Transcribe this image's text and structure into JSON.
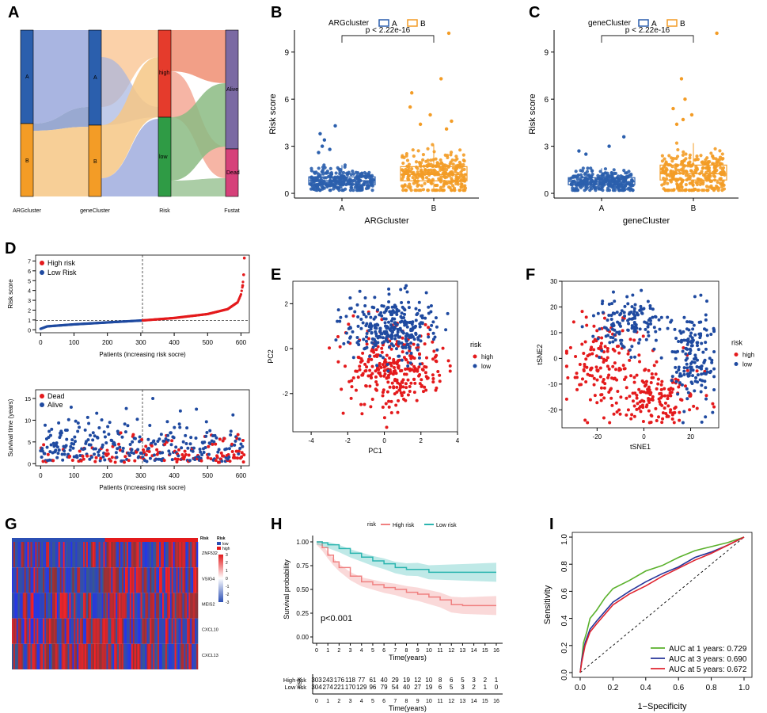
{
  "panel_letters": [
    "A",
    "B",
    "C",
    "D",
    "E",
    "F",
    "G",
    "H",
    "I"
  ],
  "colors": {
    "cluster_A": "#2b5fad",
    "cluster_B": "#f39c26",
    "risk_high": "#e53b2c",
    "risk_low": "#2f9b45",
    "alive": "#7b6aa3",
    "dead": "#d6417a",
    "red_points": "#e41a1c",
    "blue_points": "#1f4aa0",
    "km_high": "#f08080",
    "km_low": "#2bb5b0",
    "roc_1y": "#5ab12c",
    "roc_3y": "#26359a",
    "roc_5y": "#e0242f"
  },
  "chart_data": [
    {
      "id": "A",
      "type": "sankey",
      "axes": [
        "ARGcluster",
        "geneCluster",
        "Risk",
        "Fustat"
      ],
      "nodes": [
        {
          "axis": "ARGcluster",
          "label": "A",
          "share": 0.55
        },
        {
          "axis": "ARGcluster",
          "label": "B",
          "share": 0.45
        },
        {
          "axis": "geneCluster",
          "label": "A",
          "share": 0.45
        },
        {
          "axis": "geneCluster",
          "label": "B",
          "share": 0.55
        },
        {
          "axis": "Risk",
          "label": "high",
          "share": 0.5
        },
        {
          "axis": "Risk",
          "label": "low",
          "share": 0.5
        },
        {
          "axis": "Fustat",
          "label": "Alive",
          "share": 0.7
        },
        {
          "axis": "Fustat",
          "label": "Dead",
          "share": 0.3
        }
      ]
    },
    {
      "id": "B",
      "type": "boxplot",
      "legend_title": "ARGcluster",
      "legend_items": [
        "A",
        "B"
      ],
      "categories": [
        "A",
        "B"
      ],
      "xlabel": "ARGcluster",
      "ylabel": "Risk score",
      "ylim": [
        -0.3,
        10.4
      ],
      "yticks": [
        0,
        3,
        6,
        9
      ],
      "p_label": "p < 2.22e-16",
      "box_stats": [
        {
          "category": "A",
          "q1": 0.55,
          "median": 0.8,
          "q3": 1.05,
          "whisker_low": 0.2,
          "whisker_high": 1.8
        },
        {
          "category": "B",
          "q1": 0.8,
          "median": 1.2,
          "q3": 1.7,
          "whisker_low": 0.2,
          "whisker_high": 3.1
        }
      ],
      "outliers": [
        {
          "category": "A",
          "values": [
            4.3,
            3.8,
            3.4,
            3.0,
            2.8,
            2.6
          ]
        },
        {
          "category": "B",
          "values": [
            10.2,
            7.3,
            6.4,
            5.5,
            5.0,
            4.6,
            4.4,
            4.1
          ]
        }
      ]
    },
    {
      "id": "C",
      "type": "boxplot",
      "legend_title": "geneCluster",
      "legend_items": [
        "A",
        "B"
      ],
      "categories": [
        "A",
        "B"
      ],
      "xlabel": "geneCluster",
      "ylabel": "Risk score",
      "ylim": [
        -0.3,
        10.4
      ],
      "yticks": [
        0,
        3,
        6,
        9
      ],
      "p_label": "p < 2.22e-16",
      "box_stats": [
        {
          "category": "A",
          "q1": 0.55,
          "median": 0.75,
          "q3": 1.0,
          "whisker_low": 0.2,
          "whisker_high": 1.6
        },
        {
          "category": "B",
          "q1": 0.85,
          "median": 1.25,
          "q3": 1.8,
          "whisker_low": 0.2,
          "whisker_high": 3.2
        }
      ],
      "outliers": [
        {
          "category": "A",
          "values": [
            3.6,
            3.0,
            2.7,
            2.5
          ]
        },
        {
          "category": "B",
          "values": [
            10.2,
            7.3,
            6.0,
            5.4,
            5.0,
            4.7,
            4.4
          ]
        }
      ]
    },
    {
      "id": "D_top",
      "type": "scatter",
      "legend_items": [
        "High risk",
        "Low Risk"
      ],
      "xlabel": "Patients (increasing risk socre)",
      "ylabel": "Risk score",
      "xlim": [
        -15,
        625
      ],
      "ylim": [
        -0.3,
        7.6
      ],
      "xticks": [
        0,
        100,
        200,
        300,
        400,
        500,
        600
      ],
      "yticks": [
        0,
        1,
        2,
        3,
        4,
        5,
        6,
        7
      ],
      "cutoff_index": 305,
      "cutoff_score": 0.95,
      "n_patients": 610,
      "curve": [
        [
          0,
          0.1
        ],
        [
          20,
          0.35
        ],
        [
          100,
          0.55
        ],
        [
          200,
          0.75
        ],
        [
          305,
          0.95
        ],
        [
          400,
          1.2
        ],
        [
          500,
          1.6
        ],
        [
          560,
          2.1
        ],
        [
          590,
          2.8
        ],
        [
          600,
          3.6
        ],
        [
          605,
          4.5
        ],
        [
          608,
          5.6
        ],
        [
          610,
          7.3
        ]
      ]
    },
    {
      "id": "D_bottom",
      "type": "scatter",
      "legend_items": [
        "Dead",
        "Alive"
      ],
      "xlabel": "Patients (increasing risk socre)",
      "ylabel": "Survival time (years)",
      "xlim": [
        -15,
        625
      ],
      "ylim": [
        -0.5,
        17
      ],
      "xticks": [
        0,
        100,
        200,
        300,
        400,
        500,
        600
      ],
      "yticks": [
        0,
        5,
        10,
        15
      ],
      "cutoff_index": 305
    },
    {
      "id": "E",
      "type": "scatter",
      "xlabel": "PC1",
      "ylabel": "PC2",
      "xlim": [
        -5,
        4
      ],
      "ylim": [
        -3.7,
        3.0
      ],
      "xticks": [
        -4,
        -2,
        0,
        2,
        4
      ],
      "yticks": [
        -2,
        0,
        2
      ],
      "legend_title": "risk",
      "legend_items": [
        "high",
        "low"
      ]
    },
    {
      "id": "F",
      "type": "scatter",
      "xlabel": "tSNE1",
      "ylabel": "tSNE2",
      "xlim": [
        -35,
        32
      ],
      "ylim": [
        -27,
        30
      ],
      "xticks": [
        -20,
        0,
        20
      ],
      "yticks": [
        -20,
        -10,
        0,
        10,
        20,
        30
      ],
      "legend_title": "risk",
      "legend_items": [
        "high",
        "low"
      ]
    },
    {
      "id": "G",
      "type": "heatmap",
      "genes": [
        "ZNF532",
        "VSIG4",
        "MEIS2",
        "CXCL10",
        "CXCL13"
      ],
      "annotation_title": "Risk",
      "annotation_items": [
        "low",
        "high"
      ],
      "color_scale_ticks": [
        3,
        2,
        1,
        0,
        -1,
        -2,
        -3
      ]
    },
    {
      "id": "H",
      "type": "line",
      "legend_title": "risk",
      "legend_items": [
        "High risk",
        "Low risk"
      ],
      "xlabel": "Time(years)",
      "ylabel": "Survival probability",
      "xlim": [
        0,
        16
      ],
      "ylim": [
        0,
        1
      ],
      "xticks": [
        0,
        1,
        2,
        3,
        4,
        5,
        6,
        7,
        8,
        9,
        10,
        11,
        12,
        13,
        14,
        15,
        16
      ],
      "yticks": [
        "0.00",
        "0.25",
        "0.50",
        "0.75",
        "1.00"
      ],
      "pvalue": "p<0.001",
      "series": [
        {
          "name": "High risk",
          "x": [
            0,
            0.5,
            1,
            1.5,
            2,
            3,
            4,
            5,
            6,
            7,
            8,
            9,
            10,
            11,
            12,
            13,
            14,
            15,
            16
          ],
          "y": [
            1.0,
            0.94,
            0.86,
            0.79,
            0.73,
            0.64,
            0.58,
            0.55,
            0.52,
            0.5,
            0.47,
            0.45,
            0.42,
            0.39,
            0.34,
            0.33,
            0.33,
            0.33,
            0.33
          ]
        },
        {
          "name": "Low risk",
          "x": [
            0,
            0.5,
            1,
            2,
            3,
            4,
            5,
            6,
            7,
            8,
            9,
            10,
            11,
            12,
            13,
            14,
            15,
            16
          ],
          "y": [
            1.0,
            0.99,
            0.97,
            0.93,
            0.88,
            0.84,
            0.8,
            0.77,
            0.73,
            0.71,
            0.71,
            0.68,
            0.68,
            0.68,
            0.68,
            0.68,
            0.68,
            0.68
          ]
        }
      ],
      "risk_table": {
        "title": "risk",
        "rows": [
          {
            "name": "High risk",
            "counts": [
              "303",
              "243",
              "176",
              "118",
              "77",
              "61",
              "40",
              "29",
              "19",
              "12",
              "10",
              "8",
              "6",
              "5",
              "3",
              "2",
              "1"
            ]
          },
          {
            "name": "Low risk",
            "counts": [
              "304",
              "274",
              "221",
              "170",
              "129",
              "96",
              "79",
              "54",
              "40",
              "27",
              "19",
              "6",
              "5",
              "3",
              "2",
              "1",
              "0"
            ]
          }
        ]
      }
    },
    {
      "id": "I",
      "type": "line",
      "xlabel": "1−Specificity",
      "ylabel": "Sensitivity",
      "xlim": [
        0,
        1
      ],
      "ylim": [
        0,
        1
      ],
      "xticks": [
        "0.0",
        "0.2",
        "0.4",
        "0.6",
        "0.8",
        "1.0"
      ],
      "yticks": [
        "0.0",
        "0.2",
        "0.4",
        "0.6",
        "0.8",
        "1.0"
      ],
      "series": [
        {
          "name": "AUC at 1 years: 0.729",
          "x": [
            0,
            0.01,
            0.02,
            0.04,
            0.06,
            0.1,
            0.15,
            0.2,
            0.3,
            0.4,
            0.5,
            0.6,
            0.7,
            0.8,
            0.9,
            1.0
          ],
          "y": [
            0,
            0.1,
            0.22,
            0.3,
            0.4,
            0.46,
            0.55,
            0.62,
            0.68,
            0.75,
            0.79,
            0.85,
            0.9,
            0.93,
            0.96,
            1.0
          ]
        },
        {
          "name": "AUC at 3 years: 0.690",
          "x": [
            0,
            0.01,
            0.03,
            0.06,
            0.1,
            0.15,
            0.2,
            0.3,
            0.4,
            0.5,
            0.6,
            0.7,
            0.8,
            0.9,
            1.0
          ],
          "y": [
            0,
            0.1,
            0.22,
            0.32,
            0.38,
            0.45,
            0.52,
            0.6,
            0.67,
            0.73,
            0.78,
            0.85,
            0.89,
            0.94,
            1.0
          ]
        },
        {
          "name": "AUC at 5 years: 0.672",
          "x": [
            0,
            0.01,
            0.03,
            0.06,
            0.1,
            0.15,
            0.2,
            0.3,
            0.4,
            0.5,
            0.6,
            0.7,
            0.8,
            0.9,
            1.0
          ],
          "y": [
            0,
            0.08,
            0.2,
            0.3,
            0.36,
            0.43,
            0.5,
            0.58,
            0.64,
            0.71,
            0.77,
            0.83,
            0.88,
            0.94,
            1.0
          ]
        }
      ]
    }
  ]
}
